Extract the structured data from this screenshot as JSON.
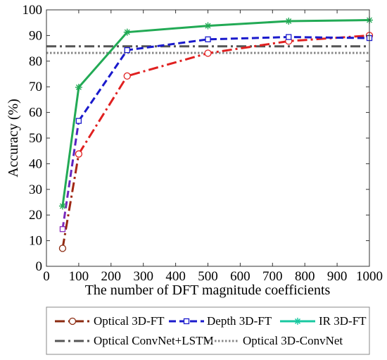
{
  "chart_data": {
    "type": "line",
    "title": "",
    "xlabel": "The number of DFT magnitude coefficients",
    "ylabel": "Accuracy (%)",
    "xlim": [
      0,
      1000
    ],
    "ylim": [
      0,
      100
    ],
    "xticks": [
      "0",
      "100",
      "200",
      "300",
      "400",
      "500",
      "600",
      "700",
      "800",
      "900",
      "1000"
    ],
    "yticks": [
      "0",
      "10",
      "20",
      "30",
      "40",
      "50",
      "60",
      "70",
      "80",
      "90",
      "100"
    ],
    "grid": false,
    "legend_position": "bottom",
    "series": [
      {
        "name": "Optical 3D-FT",
        "color": "#e02020",
        "start_color": "#8b2a10",
        "style": "dash-dot",
        "marker": "circle",
        "x": [
          50,
          100,
          250,
          500,
          750,
          1000
        ],
        "y": [
          7,
          43.8,
          74.2,
          83.1,
          87.8,
          90
        ]
      },
      {
        "name": "Depth 3D-FT",
        "color": "#1a1acc",
        "start_color": "#8a2bb8",
        "style": "dashed",
        "marker": "square",
        "x": [
          50,
          100,
          250,
          500,
          750,
          1000
        ],
        "y": [
          14.5,
          56.7,
          84.3,
          88.5,
          89.4,
          89
        ]
      },
      {
        "name": "IR 3D-FT",
        "color": "#22aa55",
        "style": "solid",
        "marker": "star",
        "x": [
          50,
          100,
          250,
          500,
          750,
          1000
        ],
        "y": [
          23.5,
          69.8,
          91.3,
          93.8,
          95.6,
          96
        ]
      }
    ],
    "reference_lines": [
      {
        "name": "Optical ConvNet+LSTM",
        "y": 85.8,
        "color": "#555555",
        "style": "dash-dot"
      },
      {
        "name": "Optical 3D-ConvNet",
        "y": 83.2,
        "color": "#888888",
        "style": "dotted"
      }
    ]
  }
}
